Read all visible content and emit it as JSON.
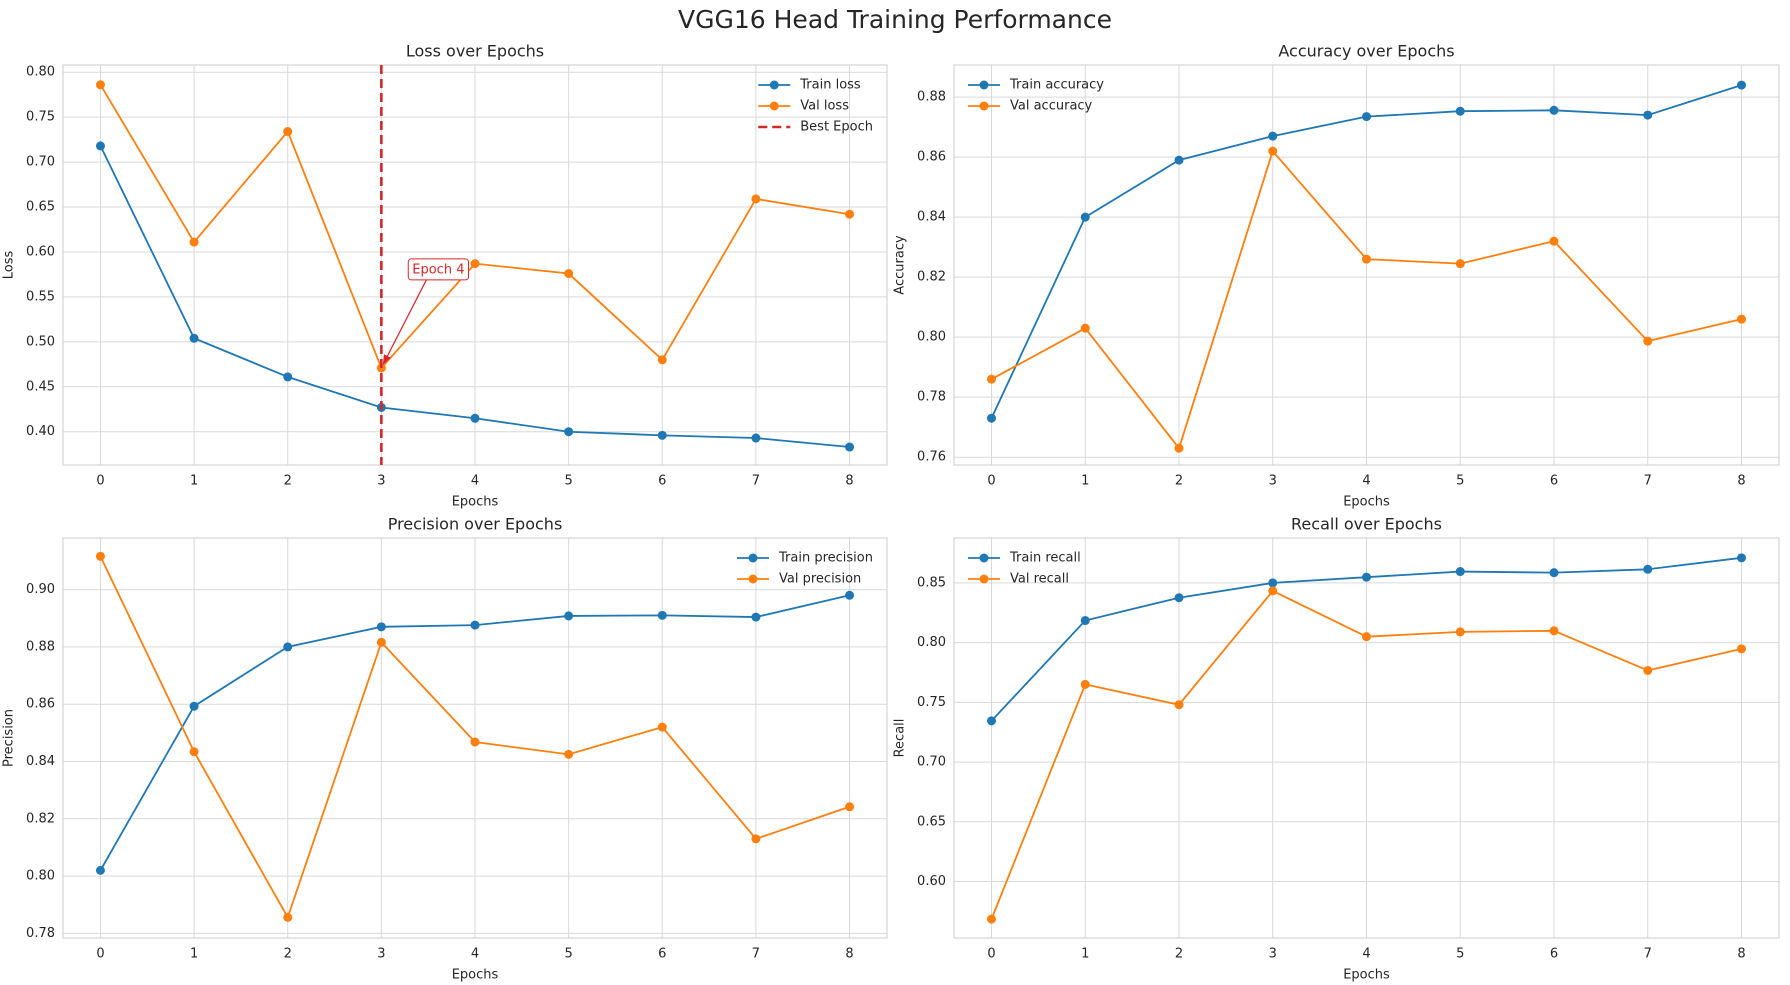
{
  "title": "VGG16 Head Training Performance",
  "chart_data": [
    {
      "type": "line",
      "title": "Loss over Epochs",
      "xlabel": "Epochs",
      "ylabel": "Loss",
      "x": [
        0,
        1,
        2,
        3,
        4,
        5,
        6,
        7,
        8
      ],
      "series": [
        {
          "name": "Train loss",
          "color": "#1f77b4",
          "values": [
            0.718,
            0.504,
            0.461,
            0.427,
            0.415,
            0.4,
            0.396,
            0.393,
            0.383
          ]
        },
        {
          "name": "Val loss",
          "color": "#ff7f0e",
          "values": [
            0.786,
            0.611,
            0.734,
            0.471,
            0.587,
            0.576,
            0.48,
            0.659,
            0.642
          ]
        }
      ],
      "vline": {
        "name": "Best Epoch",
        "x": 3,
        "color": "#d62728"
      },
      "annotation": {
        "text": "Epoch 4",
        "x": 3,
        "y": 0.471,
        "color": "#d62728"
      },
      "xlim": [
        -0.4,
        8.4
      ],
      "xticks": [
        0,
        1,
        2,
        3,
        4,
        5,
        6,
        7,
        8
      ],
      "ylim": [
        0.363,
        0.808
      ],
      "yticks": [
        {
          "value": 0.4,
          "label": "0.40"
        },
        0.45,
        {
          "value": 0.5,
          "label": "0.50"
        },
        0.55,
        {
          "value": 0.6,
          "label": "0.60"
        },
        0.65,
        {
          "value": 0.7,
          "label": "0.70"
        },
        0.75,
        {
          "value": 0.8,
          "label": "0.80"
        }
      ],
      "grid": true,
      "legend": "upper right"
    },
    {
      "type": "line",
      "title": "Accuracy over Epochs",
      "xlabel": "Epochs",
      "ylabel": "Accuracy",
      "x": [
        0,
        1,
        2,
        3,
        4,
        5,
        6,
        7,
        8
      ],
      "series": [
        {
          "name": "Train accuracy",
          "color": "#1f77b4",
          "values": [
            0.773,
            0.84,
            0.859,
            0.867,
            0.8735,
            0.8753,
            0.8756,
            0.874,
            0.884
          ]
        },
        {
          "name": "Val accuracy",
          "color": "#ff7f0e",
          "values": [
            0.786,
            0.803,
            0.763,
            0.862,
            0.826,
            0.8245,
            0.832,
            0.7987,
            0.806
          ]
        }
      ],
      "xlim": [
        -0.4,
        8.4
      ],
      "xticks": [
        0,
        1,
        2,
        3,
        4,
        5,
        6,
        7,
        8
      ],
      "ylim": [
        0.7574,
        0.8907
      ],
      "yticks": [
        0.76,
        0.78,
        {
          "value": 0.8,
          "label": "0.80"
        },
        0.82,
        0.84,
        0.86,
        0.88
      ],
      "grid": true,
      "legend": "upper left"
    },
    {
      "type": "line",
      "title": "Precision over Epochs",
      "xlabel": "Epochs",
      "ylabel": "Precision",
      "x": [
        0,
        1,
        2,
        3,
        4,
        5,
        6,
        7,
        8
      ],
      "series": [
        {
          "name": "Train precision",
          "color": "#1f77b4",
          "values": [
            0.802,
            0.8593,
            0.88,
            0.887,
            0.8876,
            0.8908,
            0.891,
            0.8904,
            0.898
          ]
        },
        {
          "name": "Val precision",
          "color": "#ff7f0e",
          "values": [
            0.9116,
            0.8434,
            0.7856,
            0.8816,
            0.8468,
            0.8425,
            0.852,
            0.813,
            0.8242
          ]
        }
      ],
      "xlim": [
        -0.4,
        8.4
      ],
      "xticks": [
        0,
        1,
        2,
        3,
        4,
        5,
        6,
        7,
        8
      ],
      "ylim": [
        0.7784,
        0.918
      ],
      "yticks": [
        0.78,
        {
          "value": 0.8,
          "label": "0.80"
        },
        0.82,
        0.84,
        0.86,
        0.88,
        {
          "value": 0.9,
          "label": "0.90"
        }
      ],
      "grid": true,
      "legend": "upper right"
    },
    {
      "type": "line",
      "title": "Recall over Epochs",
      "xlabel": "Epochs",
      "ylabel": "Recall",
      "x": [
        0,
        1,
        2,
        3,
        4,
        5,
        6,
        7,
        8
      ],
      "series": [
        {
          "name": "Train recall",
          "color": "#1f77b4",
          "values": [
            0.7345,
            0.8185,
            0.8376,
            0.85,
            0.8548,
            0.8595,
            0.8586,
            0.8614,
            0.871
          ]
        },
        {
          "name": "Val recall",
          "color": "#ff7f0e",
          "values": [
            0.5685,
            0.765,
            0.748,
            0.8433,
            0.805,
            0.809,
            0.8099,
            0.7767,
            0.7948
          ]
        }
      ],
      "xlim": [
        -0.4,
        8.4
      ],
      "xticks": [
        0,
        1,
        2,
        3,
        4,
        5,
        6,
        7,
        8
      ],
      "ylim": [
        0.5527,
        0.8876
      ],
      "yticks": [
        {
          "value": 0.6,
          "label": "0.60"
        },
        0.65,
        {
          "value": 0.7,
          "label": "0.70"
        },
        0.75,
        {
          "value": 0.8,
          "label": "0.80"
        },
        0.85
      ],
      "grid": true,
      "legend": "upper left"
    }
  ]
}
